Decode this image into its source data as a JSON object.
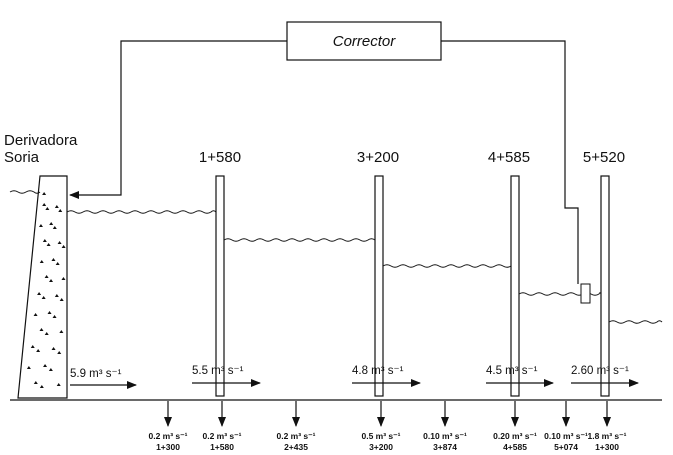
{
  "corrector": "Corrector",
  "dam": {
    "label": [
      "Derivadora",
      "Soria"
    ]
  },
  "gates": [
    "1+580",
    "3+200",
    "4+585",
    "5+520"
  ],
  "flows": [
    "5.9 m³ s⁻¹",
    "5.5 m³ s⁻¹",
    "4.8 m³ s⁻¹",
    "4.5 m³ s⁻¹",
    "2.60 m³ s⁻¹"
  ],
  "outlets": [
    {
      "flow": "0.2 m³ s⁻¹",
      "station": "1+300"
    },
    {
      "flow": "0.2 m³ s⁻¹",
      "station": "1+580"
    },
    {
      "flow": "0.2 m³ s⁻¹",
      "station": "2+435"
    },
    {
      "flow": "0.5 m³ s⁻¹",
      "station": "3+200"
    },
    {
      "flow": "0.10 m³ s⁻¹",
      "station": "3+874"
    },
    {
      "flow": "0.20 m³ s⁻¹",
      "station": "4+585"
    },
    {
      "flow": "0.10 m³ s⁻¹",
      "station": "5+074"
    },
    {
      "flow": "1.8 m³ s⁻¹",
      "station": "1+300"
    }
  ]
}
